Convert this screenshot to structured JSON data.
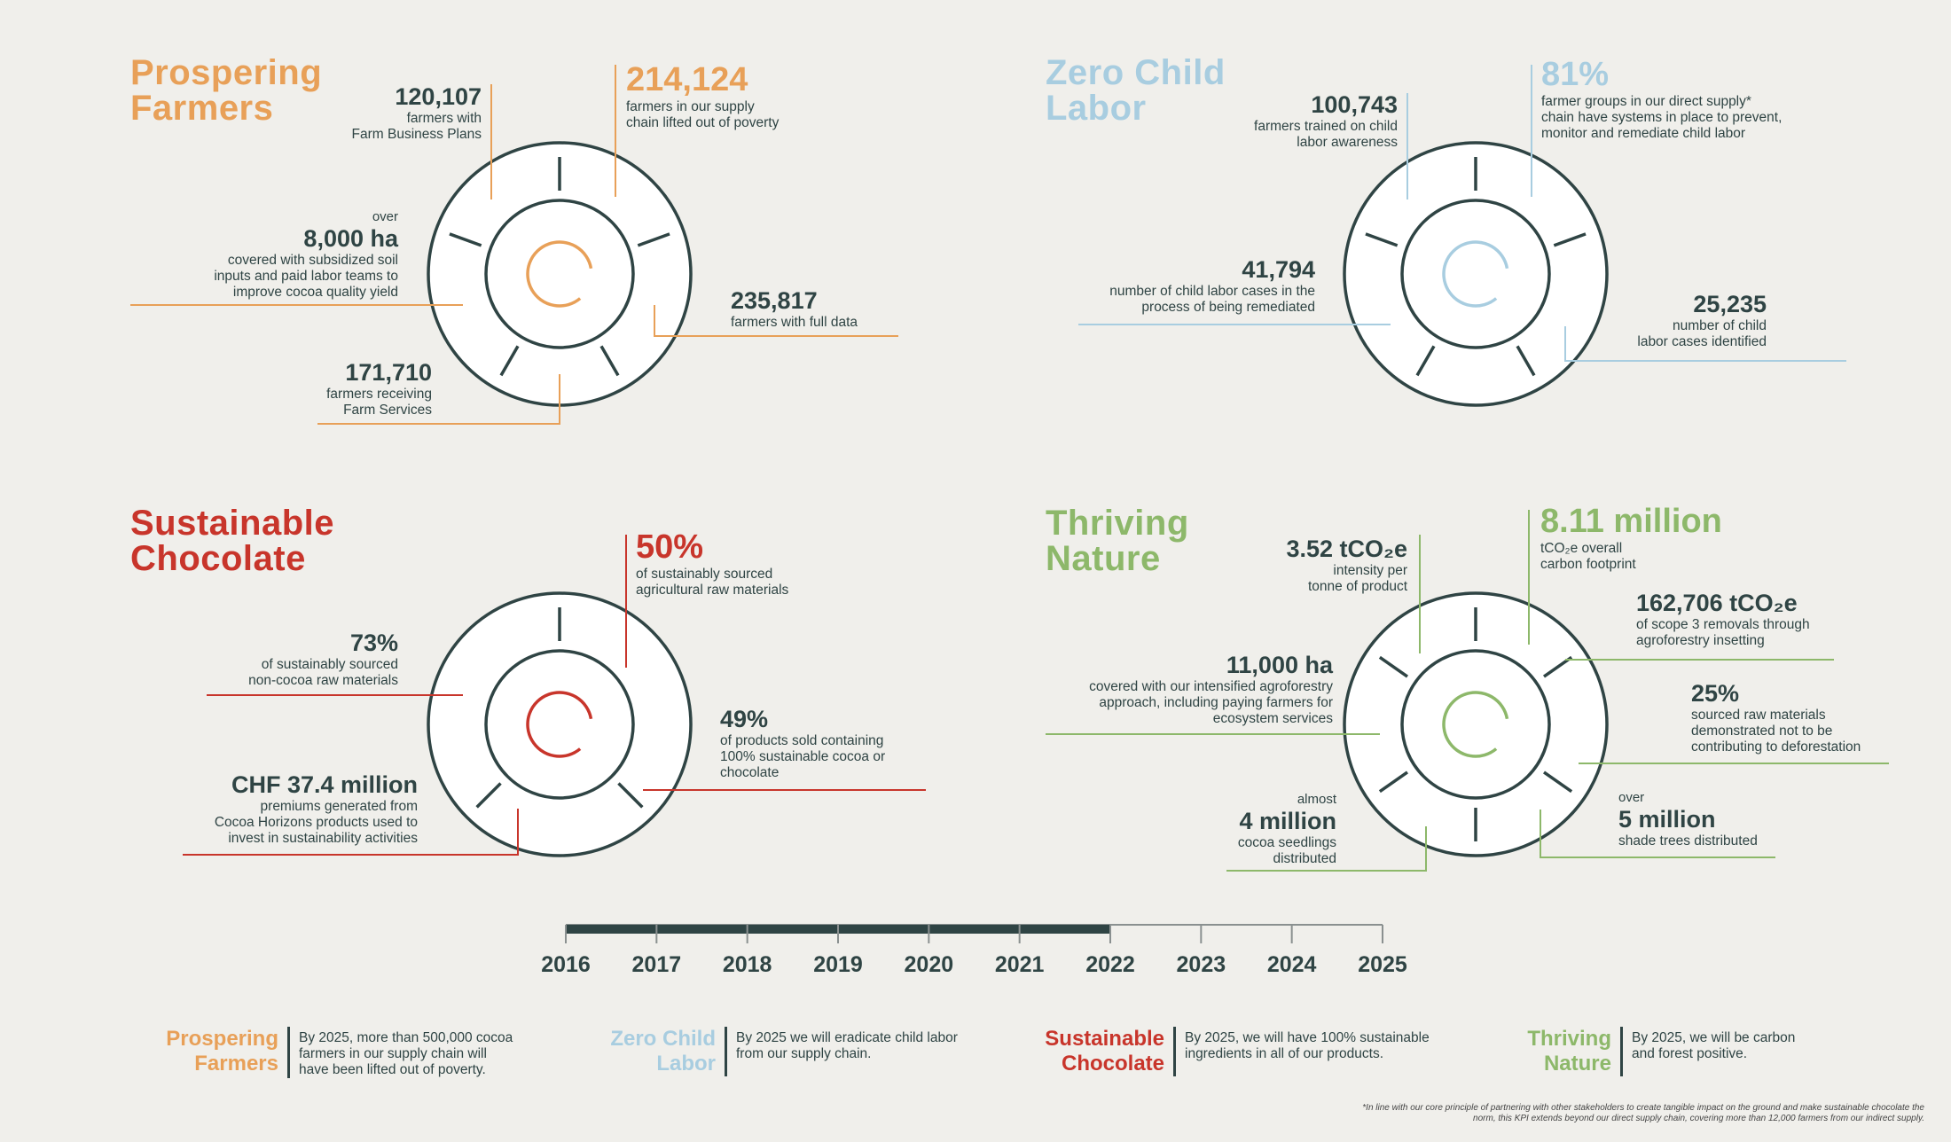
{
  "colors": {
    "orange": "#E8A058",
    "blue": "#A8CDE0",
    "red": "#C8352B",
    "green": "#8DB86A",
    "dark": "#2F4444",
    "background": "#F0EFEB"
  },
  "quadrants": [
    {
      "title": "Prospering\nFarmers",
      "stats": [
        {
          "value": "120,107",
          "desc": "farmers with\nFarm Business Plans"
        },
        {
          "value": "214,124",
          "desc": "farmers in our supply\nchain lifted out of poverty"
        },
        {
          "pre": "over",
          "value": "8,000 ha",
          "desc": "covered with subsidized soil\ninputs and paid labor teams to\nimprove cocoa quality yield"
        },
        {
          "value": "235,817",
          "desc": "farmers with full data"
        },
        {
          "value": "171,710",
          "desc": "farmers receiving\nFarm Services"
        }
      ]
    },
    {
      "title": "Zero Child\nLabor",
      "stats": [
        {
          "value": "100,743",
          "desc": "farmers trained on child\nlabor awareness"
        },
        {
          "value": "81%",
          "desc": "farmer groups in our direct supply*\nchain have systems in place to prevent,\nmonitor and remediate child labor"
        },
        {
          "value": "41,794",
          "desc": "number of child labor cases in the\nprocess of being remediated"
        },
        {
          "value": "25,235",
          "desc": "number of child\nlabor cases identified"
        }
      ]
    },
    {
      "title": "Sustainable\nChocolate",
      "stats": [
        {
          "value": "50%",
          "desc": "of sustainably sourced\nagricultural raw materials"
        },
        {
          "value": "73%",
          "desc": "of sustainably sourced\nnon-cocoa raw materials"
        },
        {
          "value": "49%",
          "desc": "of products sold containing\n100% sustainable cocoa or\nchocolate"
        },
        {
          "value": "CHF 37.4 million",
          "desc": "premiums generated from\nCocoa Horizons products used to\ninvest in sustainability activities"
        }
      ]
    },
    {
      "title": "Thriving\nNature",
      "stats": [
        {
          "value": "3.52 tCO₂e",
          "desc": "intensity per\ntonne of product"
        },
        {
          "value": "8.11 million",
          "desc": "tCO₂e overall\ncarbon footprint"
        },
        {
          "value": "162,706 tCO₂e",
          "desc": "of scope 3 removals through\nagroforestry insetting"
        },
        {
          "value": "11,000 ha",
          "desc": "covered with our intensified agroforestry\napproach, including paying farmers for\necosystem services"
        },
        {
          "value": "25%",
          "desc": "sourced raw materials\ndemonstrated not to be\ncontributing to deforestation"
        },
        {
          "pre": "almost",
          "value": "4 million",
          "desc": "cocoa seedlings\ndistributed"
        },
        {
          "pre": "over",
          "value": "5 million",
          "desc": "shade trees distributed"
        }
      ]
    }
  ],
  "timeline": {
    "years": [
      "2016",
      "2017",
      "2018",
      "2019",
      "2020",
      "2021",
      "2022",
      "2023",
      "2024",
      "2025"
    ],
    "progress_through": "2022"
  },
  "goals": [
    {
      "title": "Prospering\nFarmers",
      "text": "By 2025, more than 500,000 cocoa\nfarmers in our supply chain will\nhave been lifted out of poverty."
    },
    {
      "title": "Zero Child\nLabor",
      "text": "By 2025 we will eradicate child labor\nfrom our supply chain."
    },
    {
      "title": "Sustainable\nChocolate",
      "text": "By 2025, we will have 100% sustainable\ningredients in all of our products."
    },
    {
      "title": "Thriving\nNature",
      "text": "By 2025, we will be carbon\nand forest positive."
    }
  ],
  "footnote": "*In line with our core principle of partnering with other stakeholders to create tangible impact on the ground and make sustainable chocolate the\nnorm, this KPI extends beyond our direct supply chain, covering more than 12,000 farmers from our indirect supply."
}
